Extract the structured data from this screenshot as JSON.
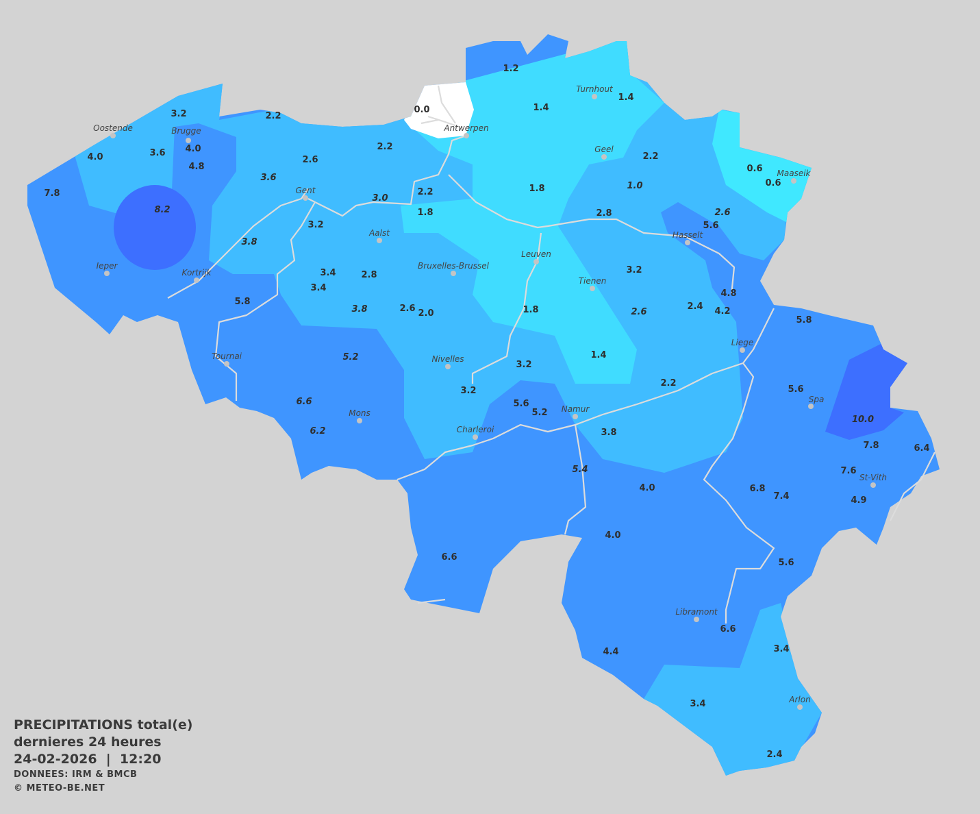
{
  "map": {
    "colors": {
      "background": "#d3d3d3",
      "zero": "#ffffff",
      "very_low": "#40e8ff",
      "low": "#40dcff",
      "moderate": "#40bcff",
      "high": "#3f95ff",
      "very_high": "#3d6fff"
    },
    "stations": [
      {
        "v": "3.2"
      },
      {
        "v": "2.2"
      },
      {
        "v": "4.0"
      },
      {
        "v": "3.6"
      },
      {
        "v": "4.0"
      },
      {
        "v": "4.8"
      },
      {
        "v": "7.8"
      },
      {
        "v": "8.2",
        "italic": true
      },
      {
        "v": "3.6",
        "italic": true
      },
      {
        "v": "2.6"
      },
      {
        "v": "2.2"
      },
      {
        "v": "0.0"
      },
      {
        "v": "1.2"
      },
      {
        "v": "1.4"
      },
      {
        "v": "1.4"
      },
      {
        "v": "2.2"
      },
      {
        "v": "1.8"
      },
      {
        "v": "1.0",
        "italic": true
      },
      {
        "v": "0.6"
      },
      {
        "v": "0.6"
      },
      {
        "v": "2.6",
        "italic": true
      },
      {
        "v": "2.8"
      },
      {
        "v": "5.6"
      },
      {
        "v": "2.2"
      },
      {
        "v": "1.8"
      },
      {
        "v": "3.0",
        "italic": true
      },
      {
        "v": "3.2"
      },
      {
        "v": "3.8",
        "italic": true
      },
      {
        "v": "3.4"
      },
      {
        "v": "3.4"
      },
      {
        "v": "2.8"
      },
      {
        "v": "5.8"
      },
      {
        "v": "3.8",
        "italic": true
      },
      {
        "v": "2.6"
      },
      {
        "v": "2.0"
      },
      {
        "v": "1.8"
      },
      {
        "v": "3.2"
      },
      {
        "v": "2.6",
        "italic": true
      },
      {
        "v": "2.4"
      },
      {
        "v": "4.8"
      },
      {
        "v": "4.2"
      },
      {
        "v": "5.8"
      },
      {
        "v": "1.4"
      },
      {
        "v": "3.2"
      },
      {
        "v": "5.2",
        "italic": true
      },
      {
        "v": "3.2"
      },
      {
        "v": "2.2"
      },
      {
        "v": "5.6"
      },
      {
        "v": "5.2"
      },
      {
        "v": "6.6",
        "italic": true
      },
      {
        "v": "6.2",
        "italic": true
      },
      {
        "v": "3.8"
      },
      {
        "v": "5.6"
      },
      {
        "v": "10.0",
        "italic": true
      },
      {
        "v": "7.8"
      },
      {
        "v": "6.4"
      },
      {
        "v": "7.6"
      },
      {
        "v": "4.9"
      },
      {
        "v": "6.8"
      },
      {
        "v": "7.4"
      },
      {
        "v": "5.4",
        "italic": true
      },
      {
        "v": "4.0"
      },
      {
        "v": "4.0"
      },
      {
        "v": "6.6"
      },
      {
        "v": "5.6"
      },
      {
        "v": "6.6"
      },
      {
        "v": "4.4"
      },
      {
        "v": "3.4"
      },
      {
        "v": "3.4"
      },
      {
        "v": "2.4"
      }
    ],
    "cities": [
      "Oostende",
      "Brugge",
      "Antwerpen",
      "Turnhout",
      "Geel",
      "Maaseik",
      "Gent",
      "Aalst",
      "Hasselt",
      "Leuven",
      "Bruxelles-Brussel",
      "Ieper",
      "Kortrijk",
      "Tienen",
      "Liege",
      "Tournai",
      "Nivelles",
      "Spa",
      "Mons",
      "Namur",
      "Charleroi",
      "St-Vith",
      "Libramont",
      "Arlon"
    ]
  },
  "legend": {
    "title": "PRECIPITATIONS total(e)",
    "period": "dernieres 24 heures",
    "datetime": "24-02-2026  |  12:20",
    "source": "DONNEES: IRM & BMCB",
    "copyright": "© METEO-BE.NET"
  }
}
